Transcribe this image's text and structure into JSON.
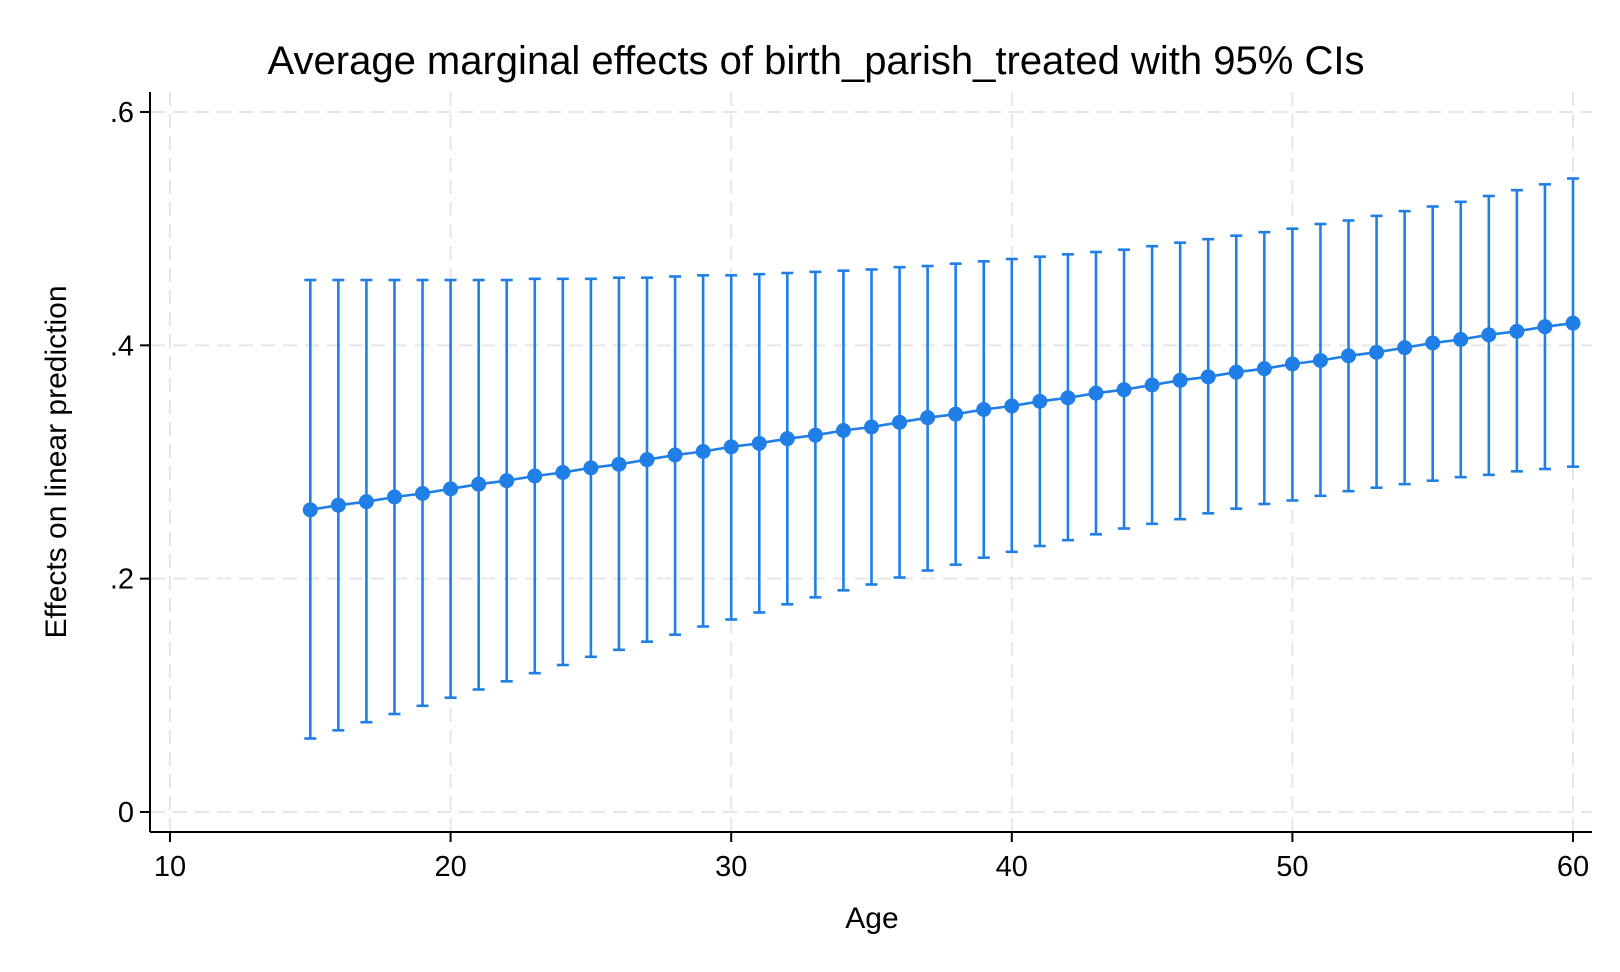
{
  "chart_data": {
    "type": "line",
    "title": "Average marginal effects of birth_parish_treated with 95% CIs",
    "xlabel": "Age",
    "ylabel": "Effects on linear prediction",
    "xlim": [
      10,
      60
    ],
    "ylim": [
      0,
      0.6
    ],
    "x_ticks": [
      10,
      20,
      30,
      40,
      50,
      60
    ],
    "x_tick_labels": [
      "10",
      "20",
      "30",
      "40",
      "50",
      "60"
    ],
    "y_ticks": [
      0,
      0.2,
      0.4,
      0.6
    ],
    "y_tick_labels": [
      "0",
      ".2",
      ".4",
      ".6"
    ],
    "grid": true,
    "series_color": "#1f7fe6",
    "x": [
      15,
      16,
      17,
      18,
      19,
      20,
      21,
      22,
      23,
      24,
      25,
      26,
      27,
      28,
      29,
      30,
      31,
      32,
      33,
      34,
      35,
      36,
      37,
      38,
      39,
      40,
      41,
      42,
      43,
      44,
      45,
      46,
      47,
      48,
      49,
      50,
      51,
      52,
      53,
      54,
      55,
      56,
      57,
      58,
      59,
      60
    ],
    "y": [
      0.259,
      0.263,
      0.266,
      0.27,
      0.273,
      0.277,
      0.281,
      0.284,
      0.288,
      0.291,
      0.295,
      0.298,
      0.302,
      0.306,
      0.309,
      0.313,
      0.316,
      0.32,
      0.323,
      0.327,
      0.33,
      0.334,
      0.338,
      0.341,
      0.345,
      0.348,
      0.352,
      0.355,
      0.359,
      0.362,
      0.366,
      0.37,
      0.373,
      0.377,
      0.38,
      0.384,
      0.387,
      0.391,
      0.394,
      0.398,
      0.402,
      0.405,
      0.409,
      0.412,
      0.416,
      0.419
    ],
    "ci_lower": [
      0.063,
      0.07,
      0.077,
      0.084,
      0.091,
      0.098,
      0.105,
      0.112,
      0.119,
      0.126,
      0.133,
      0.139,
      0.146,
      0.152,
      0.159,
      0.165,
      0.171,
      0.178,
      0.184,
      0.19,
      0.195,
      0.201,
      0.207,
      0.212,
      0.218,
      0.223,
      0.228,
      0.233,
      0.238,
      0.243,
      0.247,
      0.251,
      0.256,
      0.26,
      0.264,
      0.267,
      0.271,
      0.275,
      0.278,
      0.281,
      0.284,
      0.287,
      0.289,
      0.292,
      0.294,
      0.296
    ],
    "ci_upper": [
      0.456,
      0.456,
      0.456,
      0.456,
      0.456,
      0.456,
      0.456,
      0.456,
      0.457,
      0.457,
      0.457,
      0.458,
      0.458,
      0.459,
      0.46,
      0.46,
      0.461,
      0.462,
      0.463,
      0.464,
      0.465,
      0.467,
      0.468,
      0.47,
      0.472,
      0.474,
      0.476,
      0.478,
      0.48,
      0.482,
      0.485,
      0.488,
      0.491,
      0.494,
      0.497,
      0.5,
      0.504,
      0.507,
      0.511,
      0.515,
      0.519,
      0.523,
      0.528,
      0.533,
      0.538,
      0.543
    ]
  }
}
